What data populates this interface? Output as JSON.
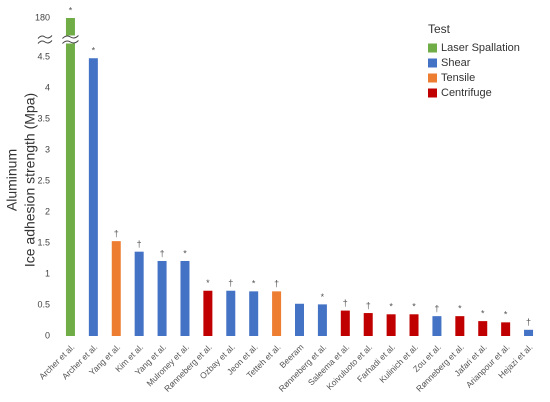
{
  "chart_data": {
    "type": "bar",
    "y_label_lines": [
      "Aluminum",
      "Ice adhesion strength (Mpa)"
    ],
    "legend_title": "Test",
    "categories": [
      "Archer et al.",
      "Archer et al.",
      "Yang et al.",
      "Kim et al.",
      "Yang et al.",
      "Mulroney et al.",
      "Rønneberg et al.",
      "Ozbay et al.",
      "Jeon et al.",
      "Tetteh et al.",
      "Beeram",
      "Rønneberg et al.",
      "Saleema et al.",
      "Koivuluoto et al.",
      "Farhadi et al.",
      "Kulinich et al.",
      "Zou et al.",
      "Rønneberg et al.",
      "Jafari et al.",
      "Arianpour et al.",
      "Hejazi et al."
    ],
    "series": [
      {
        "name": "Laser Spallation",
        "color": "#70ad47",
        "values": [
          180,
          null,
          null,
          null,
          null,
          null,
          null,
          null,
          null,
          null,
          null,
          null,
          null,
          null,
          null,
          null,
          null,
          null,
          null,
          null,
          null
        ]
      },
      {
        "name": "Shear",
        "color": "#4472c4",
        "values": [
          null,
          4.48,
          null,
          1.36,
          1.21,
          1.21,
          null,
          0.73,
          0.72,
          null,
          0.52,
          0.51,
          null,
          null,
          null,
          null,
          0.32,
          null,
          null,
          null,
          0.1
        ]
      },
      {
        "name": "Tensile",
        "color": "#ed7d31",
        "values": [
          null,
          null,
          1.53,
          null,
          null,
          null,
          null,
          null,
          null,
          0.72,
          null,
          null,
          null,
          null,
          null,
          null,
          null,
          null,
          null,
          null,
          null
        ]
      },
      {
        "name": "Centrifuge",
        "color": "#c00000",
        "values": [
          null,
          null,
          null,
          null,
          null,
          null,
          0.73,
          null,
          null,
          null,
          null,
          null,
          0.41,
          0.37,
          0.35,
          0.35,
          null,
          0.32,
          0.24,
          0.22,
          null
        ]
      }
    ],
    "markers": [
      "*",
      "*",
      "†",
      "†",
      "†",
      "*",
      "*",
      "†",
      "*",
      "†",
      null,
      "*",
      "†",
      "†",
      "*",
      "*",
      "†",
      "*",
      "*",
      "*",
      "†"
    ],
    "ylim": [
      0,
      180
    ],
    "yticks": [
      0,
      0.5,
      1,
      1.5,
      2,
      2.5,
      3,
      3.5,
      4,
      4.5,
      180
    ],
    "axis_break": true,
    "legend_position": "upper right"
  }
}
